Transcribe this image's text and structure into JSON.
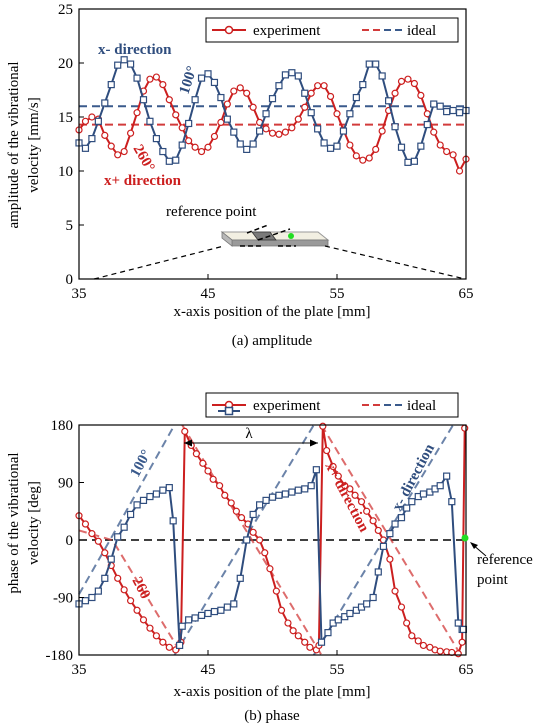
{
  "colors": {
    "experiment_red": "#cc1f1f",
    "experiment_blue": "#2f4d7e",
    "ideal_red": "#d23b3b",
    "ideal_blue": "#3a5a8c"
  },
  "chart_data": [
    {
      "type": "line",
      "caption": "(a) amplitude",
      "xlabel": "x-axis position of the plate [mm]",
      "ylabel": [
        "amplitude of the vibrational",
        "velocity [mm/s]"
      ],
      "xlim": [
        35,
        65
      ],
      "ylim": [
        0,
        25
      ],
      "xticks": [
        "35",
        "45",
        "55",
        "65"
      ],
      "yticks": [
        "0",
        "5",
        "10",
        "15",
        "20",
        "25"
      ],
      "legend": {
        "position": "top-right",
        "entries": [
          "experiment",
          "ideal"
        ]
      },
      "annotations": {
        "x_minus": "x- direction",
        "x_plus": "x+ direction",
        "angle_100": "100°",
        "angle_260": "260°",
        "reference": "reference point"
      },
      "series": [
        {
          "style": "experiment-red",
          "x": [
            35,
            35.5,
            36,
            36.5,
            37,
            37.5,
            38,
            38.5,
            39,
            39.5,
            40,
            40.5,
            41,
            41.5,
            42,
            42.5,
            43,
            43.5,
            44,
            44.5,
            45,
            45.5,
            46,
            46.5,
            47,
            47.5,
            48,
            48.5,
            49,
            49.5,
            50,
            50.5,
            51,
            51.5,
            52,
            52.5,
            53,
            53.5,
            54,
            54.5,
            55,
            55.5,
            56,
            56.5,
            57,
            57.5,
            58,
            58.5,
            59,
            59.5,
            60,
            60.5,
            61,
            61.5,
            62,
            62.5,
            63,
            63.5,
            64,
            64.5,
            65
          ],
          "y": [
            13.8,
            14.6,
            15.0,
            14.8,
            13.3,
            12.3,
            11.5,
            11.8,
            13.5,
            15.4,
            17.4,
            18.5,
            18.7,
            18.0,
            16.6,
            15.2,
            14.0,
            12.8,
            12.2,
            11.8,
            12.2,
            13.2,
            14.5,
            16.2,
            17.4,
            17.7,
            17.2,
            15.9,
            14.5,
            13.9,
            13.5,
            13.4,
            13.6,
            14.0,
            14.8,
            15.9,
            17.2,
            17.9,
            17.9,
            16.9,
            15.3,
            13.8,
            12.4,
            11.4,
            11.0,
            11.2,
            12.0,
            13.7,
            15.6,
            17.2,
            18.3,
            18.5,
            18.1,
            17.0,
            15.3,
            13.6,
            12.4,
            11.8,
            11.5,
            10.0,
            11.1
          ]
        },
        {
          "style": "experiment-blue",
          "x": [
            35,
            35.5,
            36,
            36.5,
            37,
            37.5,
            38,
            38.5,
            39,
            39.5,
            40,
            40.5,
            41,
            41.5,
            42,
            42.5,
            43,
            43.5,
            44,
            44.5,
            45,
            45.5,
            46,
            46.5,
            47,
            47.5,
            48,
            48.5,
            49,
            49.5,
            50,
            50.5,
            51,
            51.5,
            52,
            52.5,
            53,
            53.5,
            54,
            54.5,
            55,
            55.5,
            56,
            56.5,
            57,
            57.5,
            58,
            58.5,
            59,
            59.5,
            60,
            60.5,
            61,
            61.5,
            62,
            62.5,
            63,
            63.5,
            64,
            64.5,
            65
          ],
          "y": [
            12.6,
            12.1,
            13.0,
            14.6,
            16.3,
            18.0,
            19.8,
            20.3,
            19.9,
            18.6,
            16.6,
            14.6,
            13.0,
            11.8,
            10.9,
            11.0,
            12.4,
            14.4,
            16.6,
            18.6,
            19.0,
            18.2,
            16.8,
            14.8,
            13.6,
            12.5,
            12.0,
            12.5,
            13.7,
            15.3,
            16.7,
            17.9,
            18.9,
            19.1,
            18.8,
            17.2,
            15.4,
            13.9,
            12.6,
            12.1,
            12.3,
            13.7,
            15.3,
            16.8,
            18.0,
            19.9,
            19.9,
            18.8,
            16.5,
            14.1,
            12.2,
            10.8,
            10.9,
            12.3,
            14.3,
            16.2,
            16.0,
            15.5,
            15.6,
            15.4,
            15.6
          ]
        },
        {
          "style": "ideal-red",
          "x": [
            35,
            65
          ],
          "y": [
            14.3,
            14.3
          ]
        },
        {
          "style": "ideal-blue",
          "x": [
            35,
            65
          ],
          "y": [
            16.0,
            16.0
          ]
        }
      ]
    },
    {
      "type": "line",
      "caption": "(b) phase",
      "xlabel": "x-axis position of the plate [mm]",
      "ylabel": [
        "phase of the vibrational",
        "velocity [deg]"
      ],
      "xlim": [
        35,
        65
      ],
      "ylim": [
        -180,
        180
      ],
      "xticks": [
        "35",
        "45",
        "55",
        "65"
      ],
      "yticks": [
        "-180",
        "-90",
        "0",
        "90",
        "180"
      ],
      "legend": {
        "position": "top-right",
        "entries": [
          "experiment",
          "ideal"
        ]
      },
      "annotations": {
        "x_minus": "x- direction",
        "x_plus": "x+ direction",
        "angle_100": "100°",
        "angle_260": "260",
        "lambda": "λ",
        "reference": "reference",
        "point": "point"
      },
      "series": [
        {
          "style": "experiment-red",
          "x": [
            35,
            35.5,
            36,
            36.5,
            37,
            37.5,
            38,
            38.5,
            39,
            39.5,
            40,
            40.5,
            41,
            41.5,
            42,
            42.5,
            42.9,
            43.2,
            43.7,
            44.1,
            44.6,
            45.0,
            45.4,
            45.9,
            46.3,
            46.8,
            47.2,
            47.6,
            48.1,
            48.5,
            49.0,
            49.4,
            49.8,
            50.3,
            50.7,
            51.2,
            51.6,
            52.0,
            52.5,
            52.9,
            53.4,
            53.6,
            53.9,
            54.2,
            54.7,
            55.1,
            55.6,
            56.0,
            56.4,
            56.9,
            57.3,
            57.8,
            58.2,
            58.6,
            59.1,
            59.5,
            60.0,
            60.4,
            60.8,
            61.3,
            61.7,
            62.2,
            62.6,
            63.0,
            63.5,
            63.9,
            64.4,
            64.7,
            64.9
          ],
          "y": [
            38,
            25,
            10,
            -2,
            -20,
            -40,
            -60,
            -78,
            -95,
            -110,
            -125,
            -138,
            -150,
            -160,
            -168,
            -172,
            -160,
            170,
            148,
            135,
            120,
            108,
            95,
            85,
            70,
            58,
            45,
            35,
            25,
            12,
            0,
            -20,
            -45,
            -80,
            -110,
            -130,
            -142,
            -150,
            -160,
            -168,
            -172,
            -165,
            178,
            140,
            115,
            100,
            85,
            80,
            70,
            60,
            45,
            30,
            15,
            0,
            -30,
            -80,
            -105,
            -130,
            -150,
            -158,
            -165,
            -168,
            -172,
            -174,
            -175,
            -176,
            -178,
            -160,
            175
          ]
        },
        {
          "style": "experiment-blue",
          "x": [
            35,
            35.5,
            36,
            36.5,
            37,
            37.5,
            38,
            38.5,
            39,
            39.5,
            40,
            40.5,
            41,
            41.5,
            42,
            42.3,
            42.8,
            43.0,
            43.5,
            44.0,
            44.5,
            45.0,
            45.5,
            46.0,
            46.5,
            47.0,
            47.5,
            48.0,
            48.5,
            49.0,
            49.5,
            50.0,
            50.5,
            51.0,
            51.5,
            52.0,
            52.5,
            53.0,
            53.4,
            53.8,
            54.3,
            54.7,
            55.1,
            55.6,
            56.0,
            56.5,
            56.9,
            57.3,
            57.8,
            58.2,
            58.6,
            59.1,
            59.5,
            60.0,
            60.4,
            60.8,
            61.3,
            61.7,
            62.2,
            62.6,
            63.0,
            63.5,
            63.9,
            64.4,
            64.7,
            64.8
          ],
          "y": [
            -100,
            -95,
            -90,
            -80,
            -60,
            -30,
            5,
            20,
            40,
            55,
            62,
            68,
            72,
            78,
            82,
            30,
            -165,
            -135,
            -125,
            -122,
            -118,
            -115,
            -112,
            -110,
            -105,
            -100,
            -60,
            0,
            40,
            55,
            62,
            67,
            70,
            72,
            75,
            78,
            80,
            85,
            110,
            -160,
            -145,
            -130,
            -125,
            -120,
            -115,
            -110,
            -105,
            -100,
            -90,
            -50,
            -10,
            10,
            25,
            35,
            50,
            60,
            68,
            72,
            75,
            80,
            85,
            100,
            60,
            -130,
            -140,
            -140
          ]
        },
        {
          "style": "ideal-red",
          "segments": [
            [
              [
                35,
                15
              ],
              [
                37.6,
                -0.3
              ],
              [
                43.0,
                -180
              ]
            ],
            [
              [
                43.0,
                180
              ],
              [
                53.8,
                -180
              ]
            ],
            [
              [
                53.8,
                180
              ],
              [
                64.6,
                -180
              ]
            ]
          ]
        },
        {
          "style": "ideal-blue",
          "segments": [
            [
              [
                35,
                -85
              ],
              [
                37.4,
                0
              ],
              [
                42.4,
                180
              ]
            ],
            [
              [
                42.4,
                -180
              ],
              [
                53.2,
                180
              ]
            ],
            [
              [
                53.2,
                -180
              ],
              [
                64.0,
                180
              ]
            ]
          ]
        }
      ]
    }
  ]
}
